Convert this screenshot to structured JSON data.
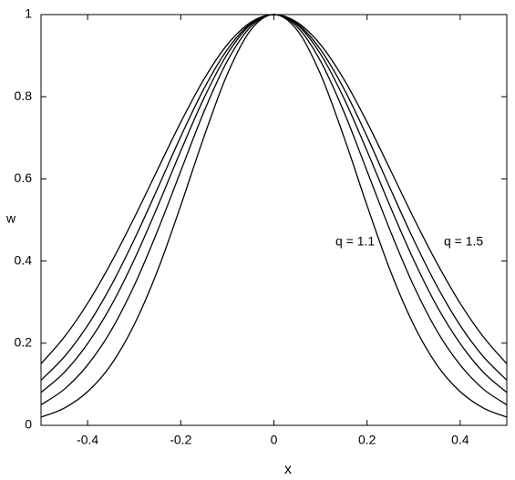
{
  "chart_data": {
    "type": "line",
    "x_label": "x",
    "y_label": "w",
    "annotations": [
      "q = 1.1",
      "q = 1.5"
    ],
    "x": [
      -0.5,
      -0.45,
      -0.4,
      -0.35,
      -0.3,
      -0.25,
      -0.2,
      -0.15,
      -0.1,
      -0.05,
      0,
      0.05,
      0.1,
      0.15,
      0.2,
      0.25,
      0.3,
      0.35,
      0.4,
      0.45,
      0.5
    ],
    "series": [
      {
        "color": "#000000",
        "values": [
          0.02,
          0.042,
          0.082,
          0.147,
          0.245,
          0.376,
          0.535,
          0.703,
          0.855,
          0.962,
          1,
          0.962,
          0.855,
          0.703,
          0.535,
          0.376,
          0.245,
          0.147,
          0.082,
          0.042,
          0.02
        ]
      },
      {
        "color": "#000000",
        "values": [
          0.05,
          0.088,
          0.147,
          0.23,
          0.34,
          0.473,
          0.619,
          0.764,
          0.887,
          0.97,
          1,
          0.97,
          0.887,
          0.764,
          0.619,
          0.473,
          0.34,
          0.23,
          0.147,
          0.088,
          0.05
        ]
      },
      {
        "color": "#000000",
        "values": [
          0.08,
          0.129,
          0.199,
          0.29,
          0.403,
          0.532,
          0.668,
          0.797,
          0.904,
          0.975,
          1,
          0.975,
          0.904,
          0.797,
          0.668,
          0.532,
          0.403,
          0.29,
          0.199,
          0.129,
          0.08
        ]
      },
      {
        "color": "#000000",
        "values": [
          0.11,
          0.167,
          0.243,
          0.339,
          0.452,
          0.576,
          0.703,
          0.82,
          0.915,
          0.978,
          1,
          0.978,
          0.915,
          0.82,
          0.703,
          0.576,
          0.452,
          0.339,
          0.243,
          0.167,
          0.11
        ]
      },
      {
        "color": "#000000",
        "values": [
          0.15,
          0.215,
          0.297,
          0.395,
          0.505,
          0.622,
          0.738,
          0.843,
          0.927,
          0.981,
          1,
          0.981,
          0.927,
          0.843,
          0.738,
          0.622,
          0.505,
          0.395,
          0.297,
          0.215,
          0.15
        ]
      }
    ],
    "xlim": [
      -0.5,
      0.5
    ],
    "xticks": [
      -0.4,
      -0.2,
      0,
      0.2,
      0.4
    ],
    "ylim": [
      0,
      1
    ],
    "yticks": [
      0,
      0.2,
      0.4,
      0.6,
      0.8,
      1
    ],
    "grid": false
  }
}
